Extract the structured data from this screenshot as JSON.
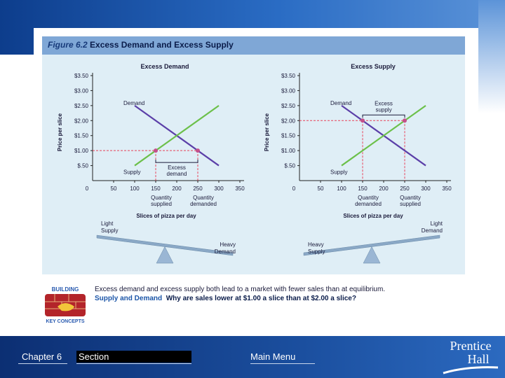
{
  "figure": {
    "number": "Figure 6.2",
    "title": "Excess Demand and Excess Supply"
  },
  "chart_data": [
    {
      "type": "line",
      "title": "Excess Demand",
      "xlabel": "Slices of pizza per day",
      "ylabel": "Price per slice",
      "x_ticks": [
        "0",
        "50",
        "100",
        "150",
        "200",
        "250",
        "300",
        "350"
      ],
      "y_ticks": [
        "$.50",
        "$1.00",
        "$1.50",
        "$2.00",
        "$2.50",
        "$3.00",
        "$3.50"
      ],
      "xlim": [
        0,
        350
      ],
      "ylim": [
        0,
        3.5
      ],
      "series": [
        {
          "name": "Demand",
          "color": "#5b3fa8",
          "x": [
            100,
            300
          ],
          "y": [
            2.5,
            0.5
          ]
        },
        {
          "name": "Supply",
          "color": "#6cc04a",
          "x": [
            100,
            300
          ],
          "y": [
            0.5,
            2.5
          ]
        }
      ],
      "price_level": 1.0,
      "points": [
        {
          "x": 150,
          "y": 1.0
        },
        {
          "x": 250,
          "y": 1.0
        }
      ],
      "bracket_label": [
        "Excess",
        "demand"
      ],
      "under_labels": [
        {
          "x": 150,
          "lines": [
            "Quantity",
            "supplied"
          ]
        },
        {
          "x": 250,
          "lines": [
            "Quantity",
            "demanded"
          ]
        }
      ],
      "scale_labels": {
        "left": [
          "Light",
          "Supply"
        ],
        "right": [
          "Heavy",
          "Demand"
        ]
      }
    },
    {
      "type": "line",
      "title": "Excess Supply",
      "xlabel": "Slices of pizza per day",
      "ylabel": "Price per slice",
      "x_ticks": [
        "0",
        "50",
        "100",
        "150",
        "200",
        "250",
        "300",
        "350"
      ],
      "y_ticks": [
        "$.50",
        "$1.00",
        "$1.50",
        "$2.00",
        "$2.50",
        "$3.00",
        "$3.50"
      ],
      "xlim": [
        0,
        350
      ],
      "ylim": [
        0,
        3.5
      ],
      "series": [
        {
          "name": "Demand",
          "color": "#5b3fa8",
          "x": [
            100,
            300
          ],
          "y": [
            2.5,
            0.5
          ]
        },
        {
          "name": "Supply",
          "color": "#6cc04a",
          "x": [
            100,
            300
          ],
          "y": [
            0.5,
            2.5
          ]
        }
      ],
      "price_level": 2.0,
      "points": [
        {
          "x": 150,
          "y": 2.0
        },
        {
          "x": 250,
          "y": 2.0
        }
      ],
      "bracket_label": [
        "Excess",
        "supply"
      ],
      "under_labels": [
        {
          "x": 150,
          "lines": [
            "Quantity",
            "demanded"
          ]
        },
        {
          "x": 250,
          "lines": [
            "Quantity",
            "supplied"
          ]
        }
      ],
      "scale_labels": {
        "left": [
          "Heavy",
          "Supply"
        ],
        "right": [
          "Light",
          "Demand"
        ]
      }
    }
  ],
  "caption": {
    "line1": "Excess demand and excess supply both lead to a market with fewer sales than at equilibrium.",
    "line2_prefix": "Supply and Demand",
    "line2_question": "Why are sales lower at $1.00 a slice than at $2.00 a slice?",
    "badge_top": "BUILDING",
    "badge_bottom": "KEY CONCEPTS"
  },
  "nav": {
    "chapter": "Chapter 6",
    "section": "Section",
    "main_menu": "Main Menu"
  },
  "logo": {
    "line1": "Prentice",
    "line2": "Hall"
  },
  "colors": {
    "price_guide": "#e8425a",
    "point": "#c4508a",
    "axis": "#222222"
  }
}
